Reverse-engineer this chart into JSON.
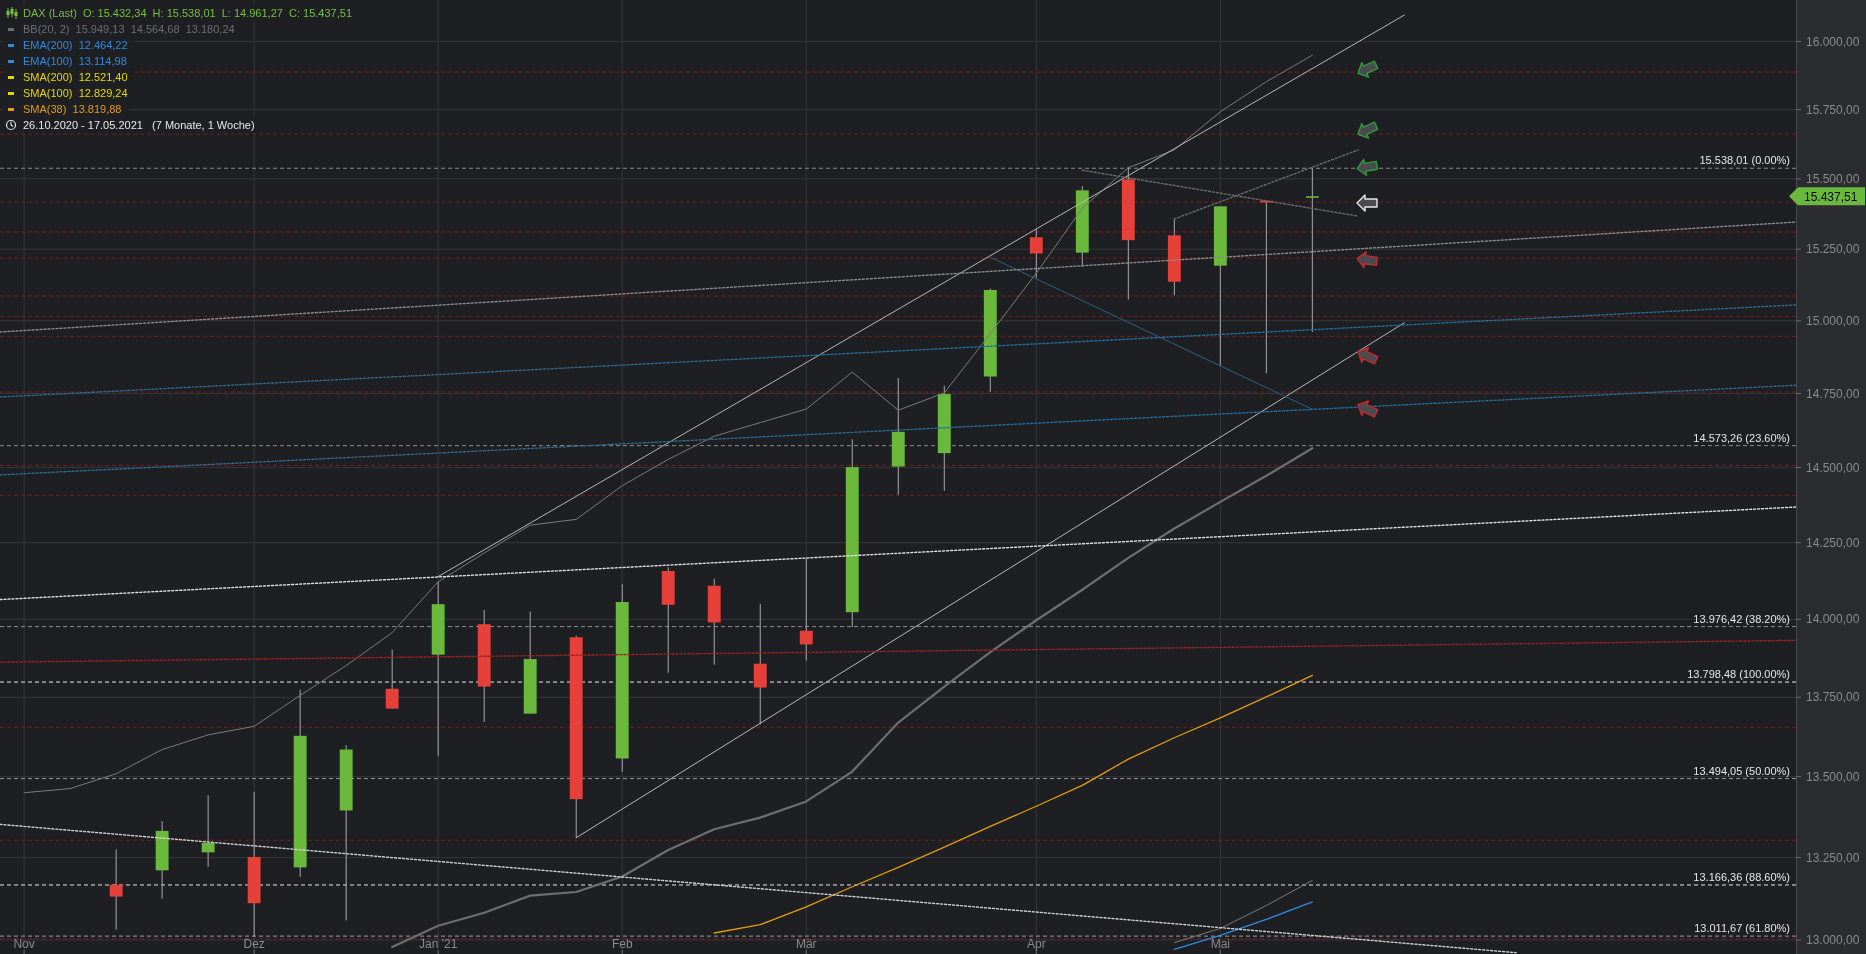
{
  "chart_data": {
    "type": "candlestick",
    "title": "DAX (Last)  O: 15.432,34  H: 15.538,01  L: 14.961,27  C: 15.437,51",
    "subtitle": "26.10.2020 - 17.05.2021   (7 Monate, 1 Woche)",
    "annotations": [
      "15.437,51"
    ],
    "x": [
      "2020-11-02",
      "2020-11-09",
      "2020-11-16",
      "2020-11-23",
      "2020-11-30",
      "2020-12-07",
      "2020-12-14",
      "2020-12-21",
      "2020-12-28",
      "2021-01-04",
      "2021-01-11",
      "2021-01-18",
      "2021-01-25",
      "2021-02-01",
      "2021-02-08",
      "2021-02-15",
      "2021-02-22",
      "2021-03-01",
      "2021-03-08",
      "2021-03-15",
      "2021-03-22",
      "2021-03-29",
      "2021-04-05",
      "2021-04-12",
      "2021-04-19",
      "2021-04-26",
      "2021-05-03",
      "2021-05-10",
      "2021-05-17"
    ],
    "ohlc": [
      null,
      null,
      [
        13167,
        13275,
        13031,
        13131
      ],
      [
        13211,
        13362,
        13125,
        13332
      ],
      [
        13266,
        13442,
        13222,
        13295
      ],
      [
        13252,
        13453,
        13010,
        13111
      ],
      [
        13220,
        13774,
        13191,
        13628
      ],
      [
        13395,
        13599,
        13059,
        13585
      ],
      [
        13777,
        13902,
        13714,
        13714
      ],
      [
        13886,
        14122,
        13565,
        14049
      ],
      [
        13984,
        14030,
        13672,
        13784
      ],
      [
        13698,
        14025,
        13698,
        13872
      ],
      [
        13942,
        13947,
        13311,
        13430
      ],
      [
        13557,
        14114,
        13515,
        14056
      ],
      [
        14157,
        14169,
        13828,
        14047
      ],
      [
        14109,
        14132,
        13854,
        13990
      ],
      [
        13857,
        14050,
        13664,
        13781
      ],
      [
        13963,
        14199,
        13867,
        13919
      ],
      [
        14023,
        14595,
        13975,
        14501
      ],
      [
        14503,
        14803,
        14409,
        14620
      ],
      [
        14548,
        14776,
        14422,
        14748
      ],
      [
        14808,
        15112,
        14756,
        15107
      ],
      [
        15292,
        15320,
        15150,
        15235
      ],
      [
        15238,
        15474,
        15188,
        15459
      ],
      [
        15498,
        15543,
        15074,
        15282
      ],
      [
        15299,
        15357,
        15088,
        15136
      ],
      [
        15192,
        15402,
        14844,
        15402
      ],
      [
        15421,
        15421,
        14819,
        15416
      ],
      [
        15432.34,
        15538.01,
        14961.27,
        15437.51
      ]
    ],
    "colors": [
      null,
      null,
      "#e5403a",
      "#6ab93c",
      "#6ab93c",
      "#e5403a",
      "#6ab93c",
      "#6ab93c",
      "#e5403a",
      "#6ab93c",
      "#e5403a",
      "#6ab93c",
      "#e5403a",
      "#6ab93c",
      "#e5403a",
      "#e5403a",
      "#e5403a",
      "#e5403a",
      "#6ab93c",
      "#6ab93c",
      "#6ab93c",
      "#6ab93c",
      "#e5403a",
      "#6ab93c",
      "#e5403a",
      "#e5403a",
      "#6ab93c",
      "#e5403a",
      "#6ab93c"
    ],
    "series": [
      {
        "type": "line",
        "name": "BB(20, 2)  15.949,13  14.564,68  13.180,24",
        "color": "#6e6e6e",
        "values": [
          null,
          null,
          null,
          null,
          null,
          null,
          null,
          null,
          12979,
          13043,
          13082,
          13134,
          13145,
          13192,
          13273,
          13337,
          13373,
          13423,
          13516,
          13670,
          13784,
          13894,
          13997,
          14096,
          14200,
          14297,
          14385,
          14472,
          14564.68
        ]
      },
      {
        "type": "line",
        "name": "EMA(200)  12.464,22",
        "color": "#2f8ae0",
        "values": [
          null,
          null,
          null,
          null,
          null,
          null,
          null,
          null,
          null,
          null,
          null,
          null,
          null,
          null,
          null,
          null,
          null,
          null,
          null,
          null,
          null,
          null,
          null,
          null,
          null,
          null,
          null,
          null,
          null
        ]
      },
      {
        "type": "line",
        "name": "EMA(100)  13.114,98",
        "color": "#2f8ae0",
        "values": [
          null,
          null,
          null,
          null,
          null,
          null,
          null,
          null,
          null,
          null,
          null,
          null,
          null,
          null,
          null,
          null,
          null,
          null,
          null,
          null,
          null,
          null,
          null,
          null,
          null,
          12972,
          13014,
          13062,
          13114.98
        ]
      },
      {
        "type": "line",
        "name": "SMA(200)  12.521,40",
        "color": "#e6d800",
        "values": [
          null,
          null,
          null,
          null,
          null,
          null,
          null,
          null,
          null,
          null,
          null,
          null,
          null,
          null,
          null,
          null,
          null,
          null,
          null,
          null,
          null,
          null,
          null,
          null,
          null,
          null,
          null,
          null,
          null
        ]
      },
      {
        "type": "line",
        "name": "SMA(100)  12.829,24",
        "color": "#e6d800",
        "values": [
          null,
          null,
          null,
          null,
          null,
          null,
          null,
          null,
          null,
          null,
          null,
          null,
          null,
          null,
          null,
          null,
          null,
          null,
          null,
          null,
          null,
          null,
          null,
          null,
          null,
          null,
          null,
          null,
          null
        ]
      },
      {
        "type": "line",
        "name": "SMA(38)  13.819,88",
        "color": "#e39b12",
        "values": [
          null,
          null,
          null,
          null,
          null,
          null,
          null,
          null,
          null,
          null,
          null,
          null,
          null,
          null,
          null,
          13021,
          13046,
          13100,
          13161,
          13220,
          13282,
          13346,
          13408,
          13473,
          13555,
          13622,
          13685,
          13751,
          13819.88
        ]
      },
      {
        "type": "line",
        "color": "#7a7a7a",
        "line_style": "solid",
        "values": [
          13450,
          13463,
          13509,
          13585,
          13631,
          13658,
          13756,
          13851,
          13957,
          14122,
          14216,
          14308,
          14327,
          14439,
          14527,
          14605,
          14651,
          14697,
          14823,
          14693,
          14752,
          14955,
          15166,
          15395,
          15540,
          15604,
          15742,
          15852,
          15949.13
        ]
      },
      {
        "type": "line",
        "color": "#7a7a7a",
        "line_style": "solid",
        "values": [
          null,
          null,
          null,
          null,
          null,
          null,
          null,
          null,
          null,
          null,
          null,
          null,
          null,
          null,
          null,
          null,
          null,
          null,
          null,
          null,
          null,
          null,
          null,
          null,
          null,
          12992,
          13035,
          13104,
          13180.24
        ]
      },
      {
        "type": "line",
        "color": "#b8b8b8",
        "line_style": "solid",
        "x": [
          "2021-01-04",
          "2021-05-31"
        ],
        "values": [
          14139,
          16098
        ]
      },
      {
        "type": "line",
        "color": "#b8b8b8",
        "line_style": "solid",
        "x": [
          "2021-01-25",
          "2021-05-31"
        ],
        "values": [
          13311,
          14993
        ]
      },
      {
        "type": "line",
        "color": "#2e5f80",
        "line_style": "solid",
        "x": [
          "2021-03-29",
          "2021-05-17"
        ],
        "values": [
          15222,
          14696
        ]
      },
      {
        "type": "line",
        "color": "#6a6a6a",
        "line_style": "dotted",
        "x": [
          "2021-04-12",
          "2021-05-24"
        ],
        "values": [
          15531,
          15367
        ]
      },
      {
        "type": "line",
        "color": "#6a6a6a",
        "line_style": "dotted",
        "x": [
          "2021-04-26",
          "2021-05-24"
        ],
        "values": [
          15357,
          15604
        ]
      },
      {
        "type": "line",
        "color": "#8a8a8a",
        "line_style": "dotted",
        "x": [
          "2020-10-29T08:00",
          "2021-07-29T14:00"
        ],
        "values": [
          14961,
          15346
        ]
      },
      {
        "type": "line",
        "color": "#e0e0e0",
        "line_style": "dotted",
        "x": [
          "2020-10-29T08:00",
          "2021-07-29T14:00"
        ],
        "values": [
          14064,
          14368
        ]
      },
      {
        "type": "line",
        "color": "#d0d0d0",
        "line_style": "dotted",
        "x": [
          "2020-10-29T08:00",
          "2021-06-17"
        ],
        "values": [
          13352,
          12962
        ]
      },
      {
        "type": "line",
        "color": "#2a6a95",
        "line_style": "dotted",
        "x": [
          "2020-10-29T08:00",
          "2021-07-29T14:00"
        ],
        "values": [
          14738,
          15055
        ]
      },
      {
        "type": "line",
        "color": "#2a6a95",
        "line_style": "dotted",
        "x": [
          "2020-10-29T08:00",
          "2021-07-29T14:00"
        ],
        "values": [
          14475,
          14778
        ]
      },
      {
        "type": "line",
        "color": "#a02020",
        "line_style": "dotted",
        "x": [
          "2020-10-29T08:00",
          "2021-07-29T14:00"
        ],
        "values": [
          13862,
          13932
        ]
      }
    ],
    "ref_lines": [
      {
        "axis": "y",
        "value": 15538.01,
        "label": "15.538,01 (0.00%)",
        "color": "#8c8c8c",
        "line_style": "dashed"
      },
      {
        "axis": "y",
        "value": 14573.26,
        "label": "14.573,26 (23.60%)",
        "color": "#8c8c8c",
        "line_style": "dashed"
      },
      {
        "axis": "y",
        "value": 13976.42,
        "label": "13.976,42 (38.20%)",
        "color": "#8c8c8c",
        "line_style": "dashed"
      },
      {
        "axis": "y",
        "value": 13798.48,
        "label": "13.798,48 (100.00%)",
        "color": "#e6e6e6",
        "line_style": "dashed"
      },
      {
        "axis": "y",
        "value": 13494.05,
        "label": "13.494,05 (50.00%)",
        "color": "#9a9a9a",
        "line_style": "dashed"
      },
      {
        "axis": "y",
        "value": 13166.36,
        "label": "13.166,36 (88.60%)",
        "color": "#e6e6e6",
        "line_style": "dashed"
      },
      {
        "axis": "y",
        "value": 13011.67,
        "label": "13.011,67 (61.80%)",
        "color": "#9a9a9a",
        "line_style": "dashed"
      },
      {
        "axis": "y",
        "value": 15887,
        "color": "#7a1d1d",
        "line_style": "dashed"
      },
      {
        "axis": "y",
        "value": 15661,
        "color": "#7a1d1d",
        "line_style": "dashed"
      },
      {
        "axis": "y",
        "value": 15417,
        "color": "#7a1d1d",
        "line_style": "dashed"
      },
      {
        "axis": "y",
        "value": 15311,
        "color": "#7a1d1d",
        "line_style": "dashed"
      },
      {
        "axis": "y",
        "value": 15219,
        "color": "#7a1d1d",
        "line_style": "dashed"
      },
      {
        "axis": "y",
        "value": 15086,
        "color": "#7a1d1d",
        "line_style": "dashed"
      },
      {
        "axis": "y",
        "value": 15015,
        "color": "#7a1d1d",
        "line_style": "dashed"
      },
      {
        "axis": "y",
        "value": 14946,
        "color": "#7a1d1d",
        "line_style": "dashed"
      },
      {
        "axis": "y",
        "value": 14755,
        "color": "#7a1d1d",
        "line_style": "dashed"
      },
      {
        "axis": "y",
        "value": 14507,
        "color": "#7a1d1d",
        "line_style": "dashed"
      },
      {
        "axis": "y",
        "value": 14407,
        "color": "#7a1d1d",
        "line_style": "dashed"
      },
      {
        "axis": "y",
        "value": 13655,
        "color": "#7a1d1d",
        "line_style": "dashed"
      },
      {
        "axis": "y",
        "value": 13303,
        "color": "#7a1d1d",
        "line_style": "dashed"
      },
      {
        "axis": "y",
        "value": 13004,
        "color": "#7a1d1d",
        "line_style": "dashed"
      }
    ],
    "xlim": [
      "2020-10-29T08:00",
      "2021-07-29T14:00"
    ],
    "xticks": [
      {
        "value": "2020-11-02",
        "label": "Nov"
      },
      {
        "value": "2020-12-07",
        "label": "Dez"
      },
      {
        "value": "2021-01-04",
        "label": "Jan '21"
      },
      {
        "value": "2021-02-01",
        "label": "Feb"
      },
      {
        "value": "2021-03-01",
        "label": "Mär"
      },
      {
        "value": "2021-04-05",
        "label": "Apr"
      },
      {
        "value": "2021-05-03",
        "label": "Mai"
      }
    ],
    "ylim": [
      12958,
      16154
    ],
    "yticks": [
      {
        "value": 13000,
        "label": "13.000,00"
      },
      {
        "value": 13250,
        "label": "13.250,00"
      },
      {
        "value": 13500,
        "label": "13.500,00"
      },
      {
        "value": 13750,
        "label": "13.750,00"
      },
      {
        "value": 14000,
        "label": "14.000,00"
      },
      {
        "value": 14250,
        "label": "14.250,00"
      },
      {
        "value": 14500,
        "label": "14.500,00"
      },
      {
        "value": 14750,
        "label": "14.750,00"
      },
      {
        "value": 15000,
        "label": "15.000,00"
      },
      {
        "value": 15250,
        "label": "15.250,00"
      },
      {
        "value": 15500,
        "label": "15.500,00"
      },
      {
        "value": 15750,
        "label": "15.750,00"
      },
      {
        "value": 16000,
        "label": "16.000,00"
      }
    ],
    "log": true,
    "grid": true,
    "legend": "top left"
  }
}
